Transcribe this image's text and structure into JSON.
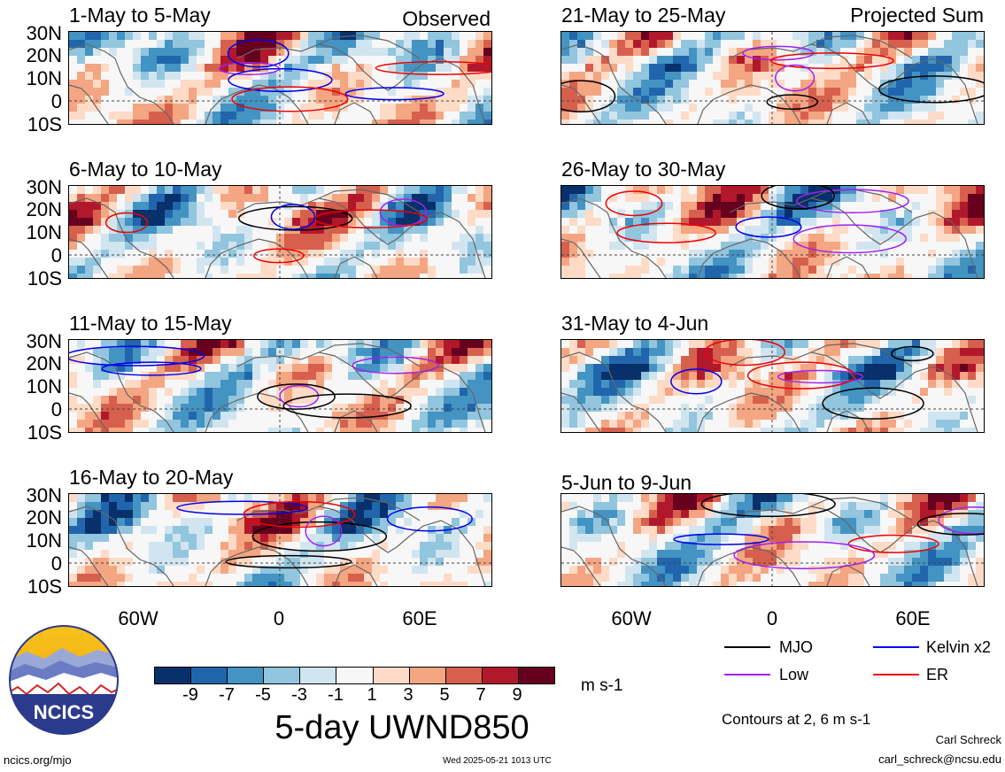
{
  "column_labels": {
    "left": "Observed",
    "right": "Projected Sum"
  },
  "panels": [
    {
      "title": "1-May to 5-May",
      "col": 0,
      "row": 0
    },
    {
      "title": "6-May to 10-May",
      "col": 0,
      "row": 1
    },
    {
      "title": "11-May to 15-May",
      "col": 0,
      "row": 2
    },
    {
      "title": "16-May to 20-May",
      "col": 0,
      "row": 3
    },
    {
      "title": "21-May to 25-May",
      "col": 1,
      "row": 0
    },
    {
      "title": "26-May to 30-May",
      "col": 1,
      "row": 1
    },
    {
      "title": "31-May to 4-Jun",
      "col": 1,
      "row": 2
    },
    {
      "title": "5-Jun to 9-Jun",
      "col": 1,
      "row": 3
    }
  ],
  "lat_labels": [
    "30N",
    "20N",
    "10N",
    "0",
    "10S"
  ],
  "lon_labels": [
    "60W",
    "0",
    "60E"
  ],
  "colorbar": {
    "colors": [
      "#08306b",
      "#2166ac",
      "#4393c3",
      "#92c5de",
      "#d1e5f0",
      "#f7f7f7",
      "#fddbc7",
      "#f4a582",
      "#d6604d",
      "#b2182b",
      "#67001f"
    ],
    "labels": [
      "-9",
      "-7",
      "-5",
      "-3",
      "-1",
      "1",
      "3",
      "5",
      "7",
      "9"
    ],
    "units": "m s-1",
    "title": "5-day UWND850"
  },
  "legend": {
    "items": [
      {
        "label": "MJO",
        "color": "#000000"
      },
      {
        "label": "Kelvin x2",
        "color": "#0000ee"
      },
      {
        "label": "Low",
        "color": "#a020f0"
      },
      {
        "label": "ER",
        "color": "#ee0000"
      }
    ],
    "contour_note": "Contours at 2, 6 m s-1"
  },
  "logo": {
    "text": "NCICS"
  },
  "footer": {
    "url": "ncics.org/mjo",
    "timestamp": "Wed 2025-05-21 1013 UTC",
    "author": "Carl Schreck",
    "email": "carl_schreck@ncsu.edu"
  }
}
